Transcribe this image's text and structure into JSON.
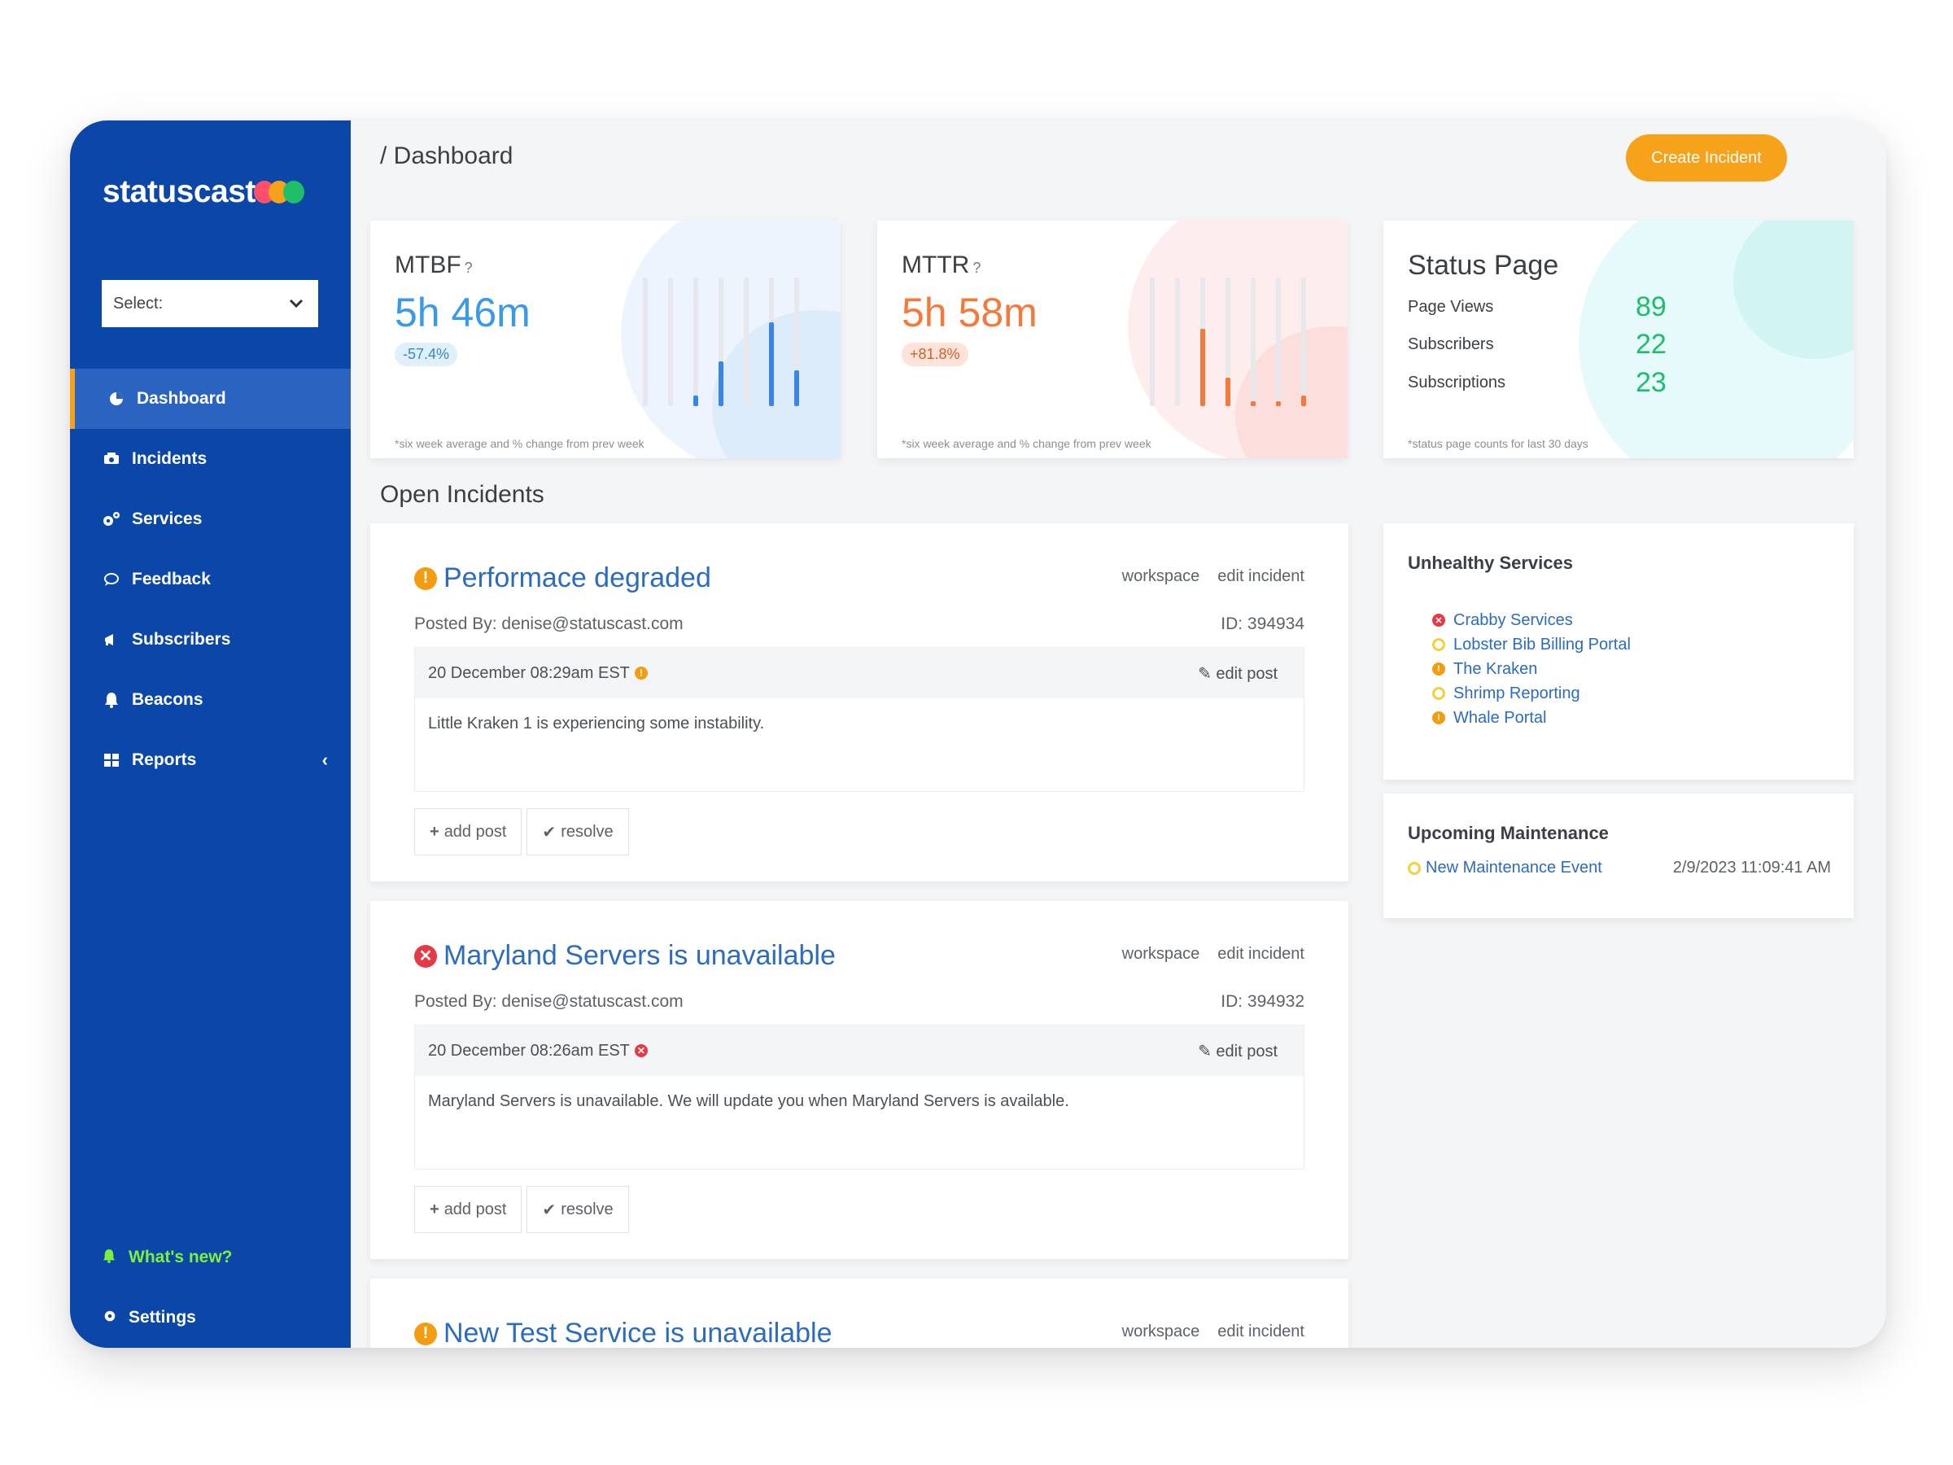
{
  "brand": {
    "name": "statuscast",
    "dot_colors": [
      "#ff4f6b",
      "#f7a21b",
      "#1fbf6a"
    ]
  },
  "sidebar": {
    "select": {
      "label": "Select:"
    },
    "items": [
      {
        "label": "Dashboard",
        "icon": "pie-chart-icon"
      },
      {
        "label": "Incidents",
        "icon": "incidents-icon"
      },
      {
        "label": "Services",
        "icon": "gears-icon"
      },
      {
        "label": "Feedback",
        "icon": "chat-bubble-icon"
      },
      {
        "label": "Subscribers",
        "icon": "megaphone-icon"
      },
      {
        "label": "Beacons",
        "icon": "bell-icon"
      },
      {
        "label": "Reports",
        "icon": "grid-icon"
      }
    ],
    "whats_new": "What's new?",
    "settings": "Settings"
  },
  "header": {
    "breadcrumb": "/ Dashboard",
    "create_button": "Create Incident"
  },
  "metrics": {
    "mtbf": {
      "label": "MTBF",
      "value": "5h 46m",
      "change": "-57.4%",
      "footnote": "*six week average and % change from prev week",
      "bar_levels": [
        0,
        0,
        0.08,
        0.35,
        0,
        0.65,
        0.28
      ],
      "accent": "#3a86e8"
    },
    "mttr": {
      "label": "MTTR",
      "value": "5h 58m",
      "change": "+81.8%",
      "footnote": "*six week average and % change from prev week",
      "bar_levels": [
        0,
        0,
        0.6,
        0.22,
        0.03,
        0.03,
        0.08
      ],
      "accent": "#f47a3c"
    },
    "status_page": {
      "title": "Status Page",
      "rows": [
        {
          "label": "Page Views",
          "value": "89"
        },
        {
          "label": "Subscribers",
          "value": "22"
        },
        {
          "label": "Subscriptions",
          "value": "23"
        }
      ],
      "footnote": "*status page counts for last 30 days"
    }
  },
  "open_incidents": {
    "title": "Open Incidents",
    "items": [
      {
        "title": "Performace degraded",
        "status": "warning",
        "workspace": "workspace",
        "edit_incident": "edit incident",
        "posted_by": "Posted By: denise@statuscast.com",
        "id": "ID: 394934",
        "post_time": "20 December 08:29am EST",
        "edit_post": "edit post",
        "post_text": "Little Kraken 1 is experiencing some instability.",
        "add_post": "add post",
        "resolve": "resolve"
      },
      {
        "title": "Maryland Servers is unavailable",
        "status": "error",
        "workspace": "workspace",
        "edit_incident": "edit incident",
        "posted_by": "Posted By: denise@statuscast.com",
        "id": "ID: 394932",
        "post_time": "20 December 08:26am EST",
        "edit_post": "edit post",
        "post_text": "Maryland Servers is unavailable. We will update you when Maryland Servers is available.",
        "add_post": "add post",
        "resolve": "resolve"
      },
      {
        "title": "New Test Service is unavailable",
        "status": "warning",
        "workspace": "workspace",
        "edit_incident": "edit incident"
      }
    ]
  },
  "unhealthy_services": {
    "title": "Unhealthy Services",
    "items": [
      {
        "name": "Crabby Services",
        "status": "error"
      },
      {
        "name": "Lobster Bib Billing Portal",
        "status": "minor"
      },
      {
        "name": "The Kraken",
        "status": "warning"
      },
      {
        "name": "Shrimp Reporting",
        "status": "minor"
      },
      {
        "name": "Whale Portal",
        "status": "warning"
      }
    ]
  },
  "upcoming_maintenance": {
    "title": "Upcoming Maintenance",
    "event": "New Maintenance Event",
    "time": "2/9/2023 11:09:41 AM"
  },
  "colors": {
    "sidebar": "#0b47a8",
    "accent_orange": "#f7a21b",
    "link_blue": "#2b6cbf",
    "error_red": "#e53946",
    "warning_orange": "#f39c12",
    "minor_yellow": "#f4d03f",
    "success_green": "#1fbf6a"
  }
}
